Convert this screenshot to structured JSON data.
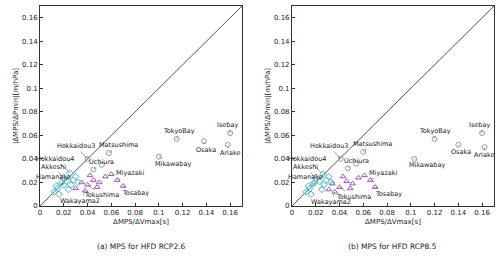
{
  "chart_data": [
    {
      "type": "scatter",
      "title": "(a) MPS for HFD RCP2.6",
      "x_label": "ΔMPS/ΔVmax[s]",
      "y_label": "|ΔMPS/ΔPmin|[m/hPa]",
      "xlim": [
        0,
        0.17
      ],
      "ylim": [
        0,
        0.17
      ],
      "xticks": [
        0,
        0.02,
        0.04,
        0.06,
        0.08,
        0.1,
        0.12,
        0.14,
        0.16
      ],
      "yticks": [
        0,
        0.02,
        0.04,
        0.06,
        0.08,
        0.1,
        0.12,
        0.14,
        0.16
      ],
      "grid": false,
      "series": [
        {
          "type": "line",
          "color": "#555555",
          "line_style": "solid",
          "x": [
            0,
            0.17
          ],
          "values": [
            0,
            0.17
          ]
        },
        {
          "type": "scatter",
          "color": "#9a9a9a",
          "marker": "circle",
          "x": [
            0.16,
            0.158,
            0.138,
            0.115,
            0.1,
            0.058,
            0.04,
            0.045,
            0.052
          ],
          "values": [
            0.062,
            0.052,
            0.055,
            0.057,
            0.042,
            0.045,
            0.04,
            0.031,
            0.035
          ]
        },
        {
          "type": "scatter",
          "color": "#9b59b6",
          "marker": "triangle",
          "x": [
            0.065,
            0.07,
            0.04,
            0.038,
            0.045,
            0.05,
            0.055,
            0.035,
            0.048,
            0.06,
            0.042,
            0.03
          ],
          "values": [
            0.022,
            0.017,
            0.018,
            0.013,
            0.022,
            0.02,
            0.025,
            0.02,
            0.016,
            0.027,
            0.026,
            0.015
          ]
        },
        {
          "type": "scatter",
          "color": "#3fb8c8",
          "marker": "diamond",
          "x": [
            0.025,
            0.02,
            0.02,
            0.012,
            0.015,
            0.018,
            0.022,
            0.028,
            0.03,
            0.016,
            0.024,
            0.014,
            0.032,
            0.026
          ],
          "values": [
            0.028,
            0.024,
            0.018,
            0.012,
            0.015,
            0.02,
            0.021,
            0.022,
            0.025,
            0.01,
            0.014,
            0.017,
            0.02,
            0.018
          ]
        }
      ],
      "annotations": [
        {
          "text": "Isebay",
          "x": 0.16,
          "y": 0.062,
          "tx": 0.158,
          "ty": 0.069
        },
        {
          "text": "Ariake",
          "x": 0.158,
          "y": 0.052,
          "tx": 0.16,
          "ty": 0.045
        },
        {
          "text": "Osaka",
          "x": 0.138,
          "y": 0.055,
          "tx": 0.14,
          "ty": 0.048
        },
        {
          "text": "TokyoBay",
          "x": 0.115,
          "y": 0.057,
          "tx": 0.117,
          "ty": 0.064
        },
        {
          "text": "Mikawabay",
          "x": 0.1,
          "y": 0.042,
          "tx": 0.112,
          "ty": 0.036
        },
        {
          "text": "Matsushima",
          "x": 0.058,
          "y": 0.045,
          "tx": 0.066,
          "ty": 0.052
        },
        {
          "text": "Hokkaidou3",
          "x": 0.04,
          "y": 0.04,
          "tx": 0.03,
          "ty": 0.051
        },
        {
          "text": "Uchiura",
          "x": 0.045,
          "y": 0.031,
          "tx": 0.052,
          "ty": 0.037
        },
        {
          "text": "Miyazaki",
          "x": 0.065,
          "y": 0.022,
          "tx": 0.076,
          "ty": 0.028
        },
        {
          "text": "Tosabay",
          "x": 0.07,
          "y": 0.017,
          "tx": 0.08,
          "ty": 0.011
        },
        {
          "text": "Tokushima",
          "x": 0.04,
          "y": 0.018,
          "tx": 0.052,
          "ty": 0.009
        },
        {
          "text": "Wakayama2",
          "x": 0.038,
          "y": 0.013,
          "tx": 0.034,
          "ty": 0.004
        },
        {
          "text": "Hokkaidou4",
          "x": 0.025,
          "y": 0.028,
          "tx": 0.013,
          "ty": 0.04
        },
        {
          "text": "Akkeshi",
          "x": 0.02,
          "y": 0.024,
          "tx": 0.011,
          "ty": 0.033
        },
        {
          "text": "Hamanako",
          "x": 0.02,
          "y": 0.018,
          "tx": 0.011,
          "ty": 0.025
        }
      ]
    },
    {
      "type": "scatter",
      "title": "(b) MPS for HFD RCP8.5",
      "x_label": "ΔMPS/ΔVmax[s]",
      "y_label": "|ΔMPS/ΔPmin|[m/hPa]",
      "xlim": [
        0,
        0.17
      ],
      "ylim": [
        0,
        0.17
      ],
      "xticks": [
        0,
        0.02,
        0.04,
        0.06,
        0.08,
        0.1,
        0.12,
        0.14,
        0.16
      ],
      "yticks": [
        0,
        0.02,
        0.04,
        0.06,
        0.08,
        0.1,
        0.12,
        0.14,
        0.16
      ],
      "grid": false,
      "series": [
        {
          "type": "line",
          "color": "#555555",
          "line_style": "solid",
          "x": [
            0,
            0.17
          ],
          "values": [
            0,
            0.17
          ]
        },
        {
          "type": "scatter",
          "color": "#9a9a9a",
          "marker": "circle",
          "x": [
            0.16,
            0.162,
            0.14,
            0.12,
            0.103,
            0.06,
            0.041,
            0.047,
            0.054
          ],
          "values": [
            0.062,
            0.05,
            0.052,
            0.057,
            0.04,
            0.046,
            0.04,
            0.032,
            0.036
          ]
        },
        {
          "type": "scatter",
          "color": "#9b59b6",
          "marker": "triangle",
          "x": [
            0.066,
            0.07,
            0.04,
            0.036,
            0.046,
            0.051,
            0.056,
            0.034,
            0.049,
            0.061,
            0.043,
            0.031
          ],
          "values": [
            0.022,
            0.016,
            0.016,
            0.012,
            0.021,
            0.019,
            0.024,
            0.019,
            0.015,
            0.026,
            0.025,
            0.014
          ]
        },
        {
          "type": "scatter",
          "color": "#3fb8c8",
          "marker": "diamond",
          "x": [
            0.026,
            0.02,
            0.018,
            0.012,
            0.015,
            0.019,
            0.023,
            0.029,
            0.031,
            0.016,
            0.025,
            0.014,
            0.033,
            0.027
          ],
          "values": [
            0.027,
            0.024,
            0.019,
            0.012,
            0.015,
            0.02,
            0.021,
            0.022,
            0.025,
            0.01,
            0.014,
            0.017,
            0.02,
            0.018
          ]
        }
      ],
      "annotations": [
        {
          "text": "Isebay",
          "x": 0.16,
          "y": 0.062,
          "tx": 0.158,
          "ty": 0.069
        },
        {
          "text": "Ariake",
          "x": 0.162,
          "y": 0.05,
          "tx": 0.162,
          "ty": 0.043
        },
        {
          "text": "Osaka",
          "x": 0.14,
          "y": 0.052,
          "tx": 0.142,
          "ty": 0.046
        },
        {
          "text": "TokyoBay",
          "x": 0.12,
          "y": 0.057,
          "tx": 0.12,
          "ty": 0.064
        },
        {
          "text": "Mikawabay",
          "x": 0.103,
          "y": 0.04,
          "tx": 0.114,
          "ty": 0.035
        },
        {
          "text": "Matsushima",
          "x": 0.06,
          "y": 0.046,
          "tx": 0.068,
          "ty": 0.053
        },
        {
          "text": "Hokkaidou3",
          "x": 0.041,
          "y": 0.04,
          "tx": 0.031,
          "ty": 0.051
        },
        {
          "text": "Uchiura",
          "x": 0.047,
          "y": 0.032,
          "tx": 0.054,
          "ty": 0.038
        },
        {
          "text": "Miyazaki",
          "x": 0.066,
          "y": 0.022,
          "tx": 0.077,
          "ty": 0.028
        },
        {
          "text": "Tosabay",
          "x": 0.07,
          "y": 0.016,
          "tx": 0.081,
          "ty": 0.01
        },
        {
          "text": "Tokushima",
          "x": 0.04,
          "y": 0.016,
          "tx": 0.052,
          "ty": 0.008
        },
        {
          "text": "Wakayama2",
          "x": 0.036,
          "y": 0.012,
          "tx": 0.033,
          "ty": 0.003
        },
        {
          "text": "Hokkaidou4",
          "x": 0.026,
          "y": 0.027,
          "tx": 0.013,
          "ty": 0.04
        },
        {
          "text": "Akkeshi",
          "x": 0.02,
          "y": 0.024,
          "tx": 0.011,
          "ty": 0.033
        },
        {
          "text": "Hamanako",
          "x": 0.018,
          "y": 0.019,
          "tx": 0.011,
          "ty": 0.025
        }
      ]
    }
  ]
}
